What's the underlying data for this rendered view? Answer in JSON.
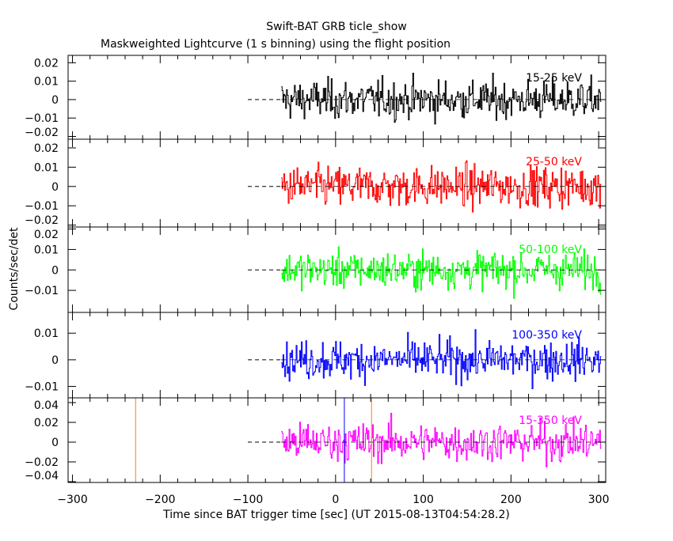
{
  "chart_data": {
    "type": "line",
    "title": "Swift-BAT GRB ticle_show",
    "subtitle": "Maskweighted Lightcurve (1 s binning) using the flight position",
    "xlabel": "Time since BAT trigger time [sec] (UT 2015-08-13T04:54:28.2)",
    "ylabel": "Counts/sec/det",
    "xlim": [
      -305,
      308
    ],
    "xticks": [
      -300,
      -200,
      -100,
      0,
      100,
      200,
      300
    ],
    "x_range_data": [
      -62,
      302
    ],
    "binning_sec": 1,
    "baseline_dash_range": [
      -100,
      -62
    ],
    "vertical_lines": [
      {
        "t": -228,
        "color": "#ff8000",
        "panel": 4
      },
      {
        "t": 10,
        "color": "#0000ff",
        "panel": 4
      },
      {
        "t": 41,
        "color": "#ff8000",
        "panel": 4
      }
    ],
    "panels": [
      {
        "label": "15-25 keV",
        "color": "#000000",
        "ylim": [
          -0.0215,
          0.024
        ],
        "yticks": [
          0.02,
          0.01,
          0,
          -0.01,
          -0.02
        ],
        "ytick_labels": [
          "0.02",
          "0.01",
          "0",
          "−0.01",
          "−0.02"
        ],
        "noise_sigma": 0.0065
      },
      {
        "label": "25-50 keV",
        "color": "#ff0000",
        "ylim": [
          -0.021,
          0.0245
        ],
        "yticks": [
          0.02,
          0.01,
          0,
          -0.01,
          -0.02
        ],
        "ytick_labels": [
          "0.02",
          "0.01",
          "0",
          "−0.01",
          "−0.02"
        ],
        "noise_sigma": 0.0065
      },
      {
        "label": "50-100 keV",
        "color": "#00ff00",
        "ylim": [
          -0.0208,
          0.021
        ],
        "yticks": [
          0.02,
          0.01,
          0,
          -0.01
        ],
        "ytick_labels": [
          "0.02",
          "0.01",
          "0",
          "−0.01"
        ],
        "noise_sigma": 0.0055
      },
      {
        "label": "100-350 keV",
        "color": "#0000ff",
        "ylim": [
          -0.0143,
          0.0178
        ],
        "yticks": [
          0.01,
          0,
          -0.01
        ],
        "ytick_labels": [
          "0.01",
          "0",
          "−0.01"
        ],
        "noise_sigma": 0.0045
      },
      {
        "label": "15-350 keV",
        "color": "#ff00ff",
        "ylim": [
          -0.0408,
          0.0448
        ],
        "yticks": [
          0.04,
          0.02,
          0,
          -0.02,
          -0.04
        ],
        "ytick_labels": [
          "0.04",
          "0.02",
          "0",
          "−0.02",
          "−0.04"
        ],
        "noise_sigma": 0.012
      }
    ]
  }
}
